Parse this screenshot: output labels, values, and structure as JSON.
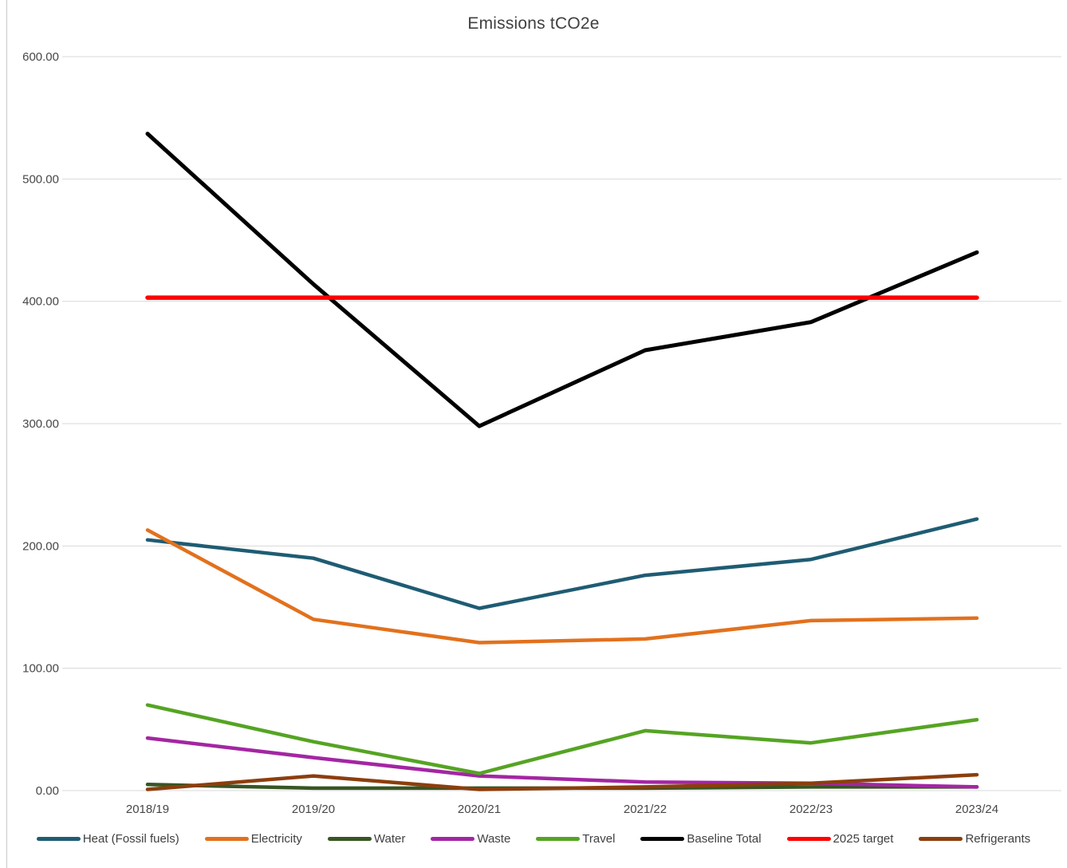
{
  "chart_data": {
    "type": "line",
    "title": "Emissions tCO2e",
    "categories": [
      "2018/19",
      "2019/20",
      "2020/21",
      "2021/22",
      "2022/23",
      "2023/24"
    ],
    "series": [
      {
        "name": "Heat (Fossil fuels)",
        "color": "#1F5C73",
        "width": 4.5,
        "values": [
          205,
          190,
          149,
          176,
          189,
          222
        ]
      },
      {
        "name": "Electricity",
        "color": "#E2711D",
        "width": 4.5,
        "values": [
          213,
          140,
          121,
          124,
          139,
          141
        ]
      },
      {
        "name": "Water",
        "color": "#375623",
        "width": 4.5,
        "values": [
          5,
          2,
          2,
          2,
          3,
          3
        ]
      },
      {
        "name": "Waste",
        "color": "#A326A3",
        "width": 4.5,
        "values": [
          43,
          27,
          12,
          7,
          6,
          3
        ]
      },
      {
        "name": "Travel",
        "color": "#55A423",
        "width": 4.5,
        "values": [
          70,
          40,
          14,
          49,
          39,
          58
        ]
      },
      {
        "name": "Baseline Total",
        "color": "#000000",
        "width": 5,
        "values": [
          537,
          414,
          298,
          360,
          383,
          440
        ]
      },
      {
        "name": "2025 target",
        "color": "#FF0000",
        "width": 5.5,
        "values": [
          403,
          403,
          403,
          403,
          403,
          403
        ]
      },
      {
        "name": "Refrigerants",
        "color": "#8C3E0D",
        "width": 4.5,
        "values": [
          1,
          12,
          1,
          3,
          6,
          13
        ]
      }
    ],
    "ylim": [
      0,
      600
    ],
    "ytick_labels": [
      "0.00",
      "100.00",
      "200.00",
      "300.00",
      "400.00",
      "500.00",
      "600.00"
    ],
    "grid": true,
    "gridline_color": "#D9D9D9",
    "legend_position": "bottom"
  }
}
